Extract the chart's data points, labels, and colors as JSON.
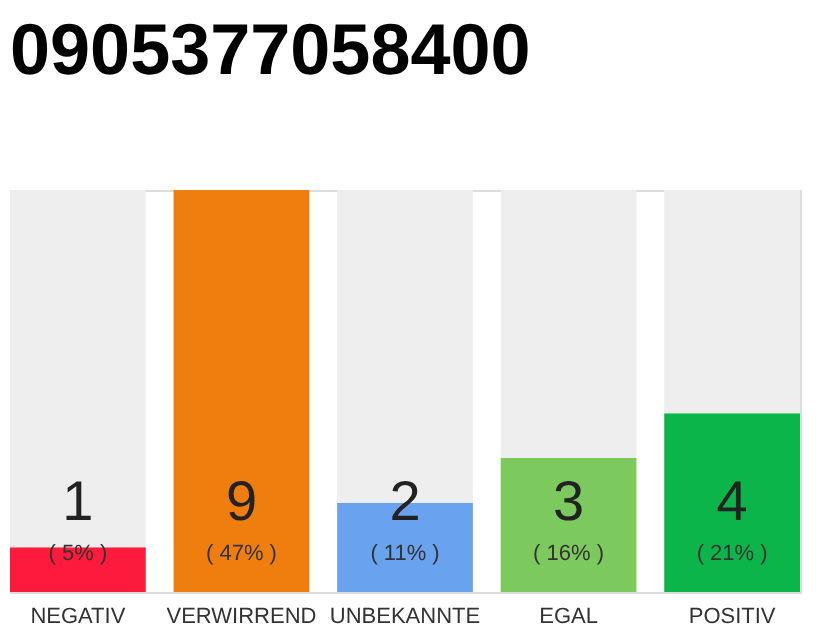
{
  "chart_data": {
    "type": "bar",
    "title": "0905377058400",
    "categories": [
      "NEGATIV",
      "VERWIRREND",
      "UNBEKANNTE",
      "EGAL",
      "POSITIV"
    ],
    "stacked": true,
    "series": [
      {
        "colors": [
          "#fe1a3c",
          "#f07e0e",
          "#69a2ee",
          "#7cc95e",
          "#0cb54a"
        ],
        "values": [
          1,
          9,
          2,
          3,
          4
        ],
        "value_labels": [
          "1",
          "9",
          "2",
          "3",
          "4"
        ]
      },
      {
        "color": "#eeeeee",
        "values": [
          8,
          0,
          7,
          6,
          5
        ],
        "value_labels": [
          null,
          null,
          null,
          null,
          null
        ]
      }
    ],
    "annotations": [
      "( 5% )",
      "( 47% )",
      "( 11% )",
      "( 16% )",
      "( 21% )"
    ],
    "grid": false
  }
}
